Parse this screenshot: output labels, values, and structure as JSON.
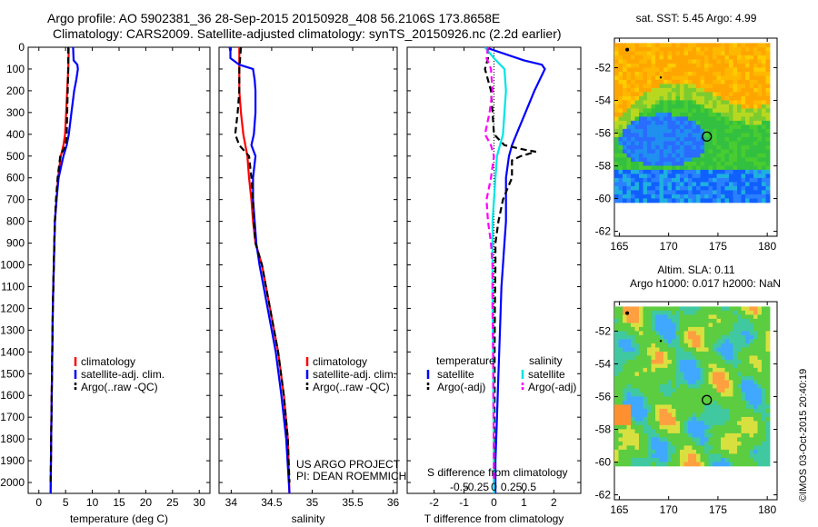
{
  "header": {
    "line1": "Argo profile: AO 5902381_36 28-Sep-2015 20150928_408 56.2106S 173.8658E",
    "line2": "Climatology: CARS2009. Satellite-adjusted climatology: synTS_20150926.nc (2.2d earlier)"
  },
  "colors": {
    "red": "#ff0000",
    "blue": "#0000ff",
    "black": "#000000",
    "cyan": "#00e5e5",
    "magenta": "#ff00ff"
  },
  "chart_data": [
    {
      "type": "line",
      "name": "temperature-profile",
      "xlabel": "temperature (deg C)",
      "xlim": [
        -2,
        32
      ],
      "ylim": [
        0,
        2050
      ],
      "xticks": [
        "0",
        "5",
        "10",
        "15",
        "20",
        "25",
        "30"
      ],
      "xtick_values": [
        0,
        5,
        10,
        15,
        20,
        25,
        30
      ],
      "yticks": [
        "0",
        "100",
        "200",
        "300",
        "400",
        "500",
        "600",
        "700",
        "800",
        "900",
        "1000",
        "1100",
        "1200",
        "1300",
        "1400",
        "1500",
        "1600",
        "1700",
        "1800",
        "1900",
        "2000"
      ],
      "ytick_values": [
        0,
        100,
        200,
        300,
        400,
        500,
        600,
        700,
        800,
        900,
        1000,
        1100,
        1200,
        1300,
        1400,
        1500,
        1600,
        1700,
        1800,
        1900,
        2000
      ],
      "legend": [
        "climatology",
        "satellite-adj. clim.",
        "Argo(..raw -QC)"
      ],
      "series": [
        {
          "name": "climatology",
          "color": "red",
          "dash": false,
          "depth": [
            0,
            100,
            200,
            300,
            400,
            450,
            500,
            600,
            700,
            800,
            900,
            1000,
            1200,
            1400,
            1600,
            1800,
            2050
          ],
          "x": [
            5.6,
            5.5,
            5.3,
            5.1,
            4.9,
            4.6,
            4.1,
            3.6,
            3.3,
            3.0,
            2.9,
            2.8,
            2.6,
            2.5,
            2.4,
            2.3,
            2.2
          ]
        },
        {
          "name": "satellite-adj. clim.",
          "color": "blue",
          "dash": false,
          "depth": [
            0,
            60,
            80,
            100,
            150,
            200,
            300,
            400,
            450,
            500,
            600,
            700,
            800,
            900,
            1000,
            1200,
            1400,
            1600,
            1800,
            2050
          ],
          "x": [
            6.4,
            6.5,
            7.2,
            7.3,
            7.0,
            6.6,
            6.1,
            5.6,
            5.2,
            4.6,
            3.7,
            3.3,
            3.0,
            2.9,
            2.8,
            2.6,
            2.5,
            2.4,
            2.3,
            2.2
          ]
        },
        {
          "name": "Argo(..raw -QC)",
          "color": "black",
          "dash": true,
          "depth": [
            0,
            100,
            200,
            300,
            400,
            450,
            500,
            600,
            700,
            800,
            900,
            1000,
            1200,
            1400,
            1600,
            1800,
            2000
          ],
          "x": [
            5.5,
            5.5,
            5.4,
            5.3,
            5.2,
            5.0,
            4.0,
            3.5,
            3.2,
            3.0,
            2.9,
            2.8,
            2.6,
            2.5,
            2.4,
            2.3,
            2.2
          ]
        }
      ]
    },
    {
      "type": "line",
      "name": "salinity-profile",
      "xlabel": "salinity",
      "xlim": [
        33.85,
        36.05
      ],
      "ylim": [
        0,
        2050
      ],
      "xticks": [
        "34",
        "34.5",
        "35",
        "35.5",
        "36"
      ],
      "xtick_values": [
        34,
        34.5,
        35,
        35.5,
        36
      ],
      "legend": [
        "climatology",
        "satellite-adj. clim.",
        "Argo(..raw -QC)"
      ],
      "annotations": [
        "US ARGO PROJECT",
        "PI: DEAN ROEMMICH"
      ],
      "series": [
        {
          "name": "climatology",
          "color": "red",
          "dash": false,
          "depth": [
            0,
            100,
            200,
            300,
            400,
            500,
            600,
            700,
            800,
            900,
            1000,
            1200,
            1400,
            1600,
            1800,
            2050
          ],
          "x": [
            34.1,
            34.1,
            34.1,
            34.12,
            34.15,
            34.2,
            34.22,
            34.25,
            34.27,
            34.3,
            34.38,
            34.48,
            34.58,
            34.65,
            34.7,
            34.72
          ]
        },
        {
          "name": "satellite-adj. clim.",
          "color": "blue",
          "dash": false,
          "depth": [
            0,
            20,
            50,
            80,
            100,
            150,
            200,
            300,
            400,
            450,
            500,
            600,
            700,
            800,
            900,
            1000,
            1200,
            1400,
            1600,
            1800,
            2050
          ],
          "x": [
            33.98,
            33.99,
            33.99,
            34.1,
            34.27,
            34.29,
            34.3,
            34.3,
            34.28,
            34.25,
            34.3,
            34.27,
            34.27,
            34.29,
            34.31,
            34.35,
            34.45,
            34.55,
            34.62,
            34.68,
            34.72
          ]
        },
        {
          "name": "Argo(..raw -QC)",
          "color": "black",
          "dash": true,
          "depth": [
            0,
            100,
            200,
            300,
            400,
            450,
            500,
            600,
            700,
            800,
            900,
            1000,
            1200,
            1400,
            1600,
            1800,
            2000
          ],
          "x": [
            34.12,
            34.1,
            34.1,
            34.08,
            34.05,
            34.1,
            34.22,
            34.25,
            34.27,
            34.28,
            34.3,
            34.38,
            34.48,
            34.58,
            34.65,
            34.7,
            34.72
          ]
        }
      ]
    },
    {
      "type": "line",
      "name": "difference-profile",
      "xlabel": "T difference from climatology",
      "xlabel_top": "S difference from climatology",
      "xlim": [
        -2.9,
        2.9
      ],
      "ylim": [
        0,
        2050
      ],
      "xticks": [
        "-2",
        "-1",
        "0",
        "1",
        "2"
      ],
      "xtick_values": [
        -2,
        -1,
        0,
        1,
        2
      ],
      "xticks_top": [
        "-0.5",
        "-0.25",
        "0",
        "0.25",
        "0.5"
      ],
      "xtick_values_top": [
        -1.16,
        -0.58,
        0,
        0.58,
        1.16
      ],
      "legend": [
        "temperature",
        "satellite",
        "Argo(-adj)",
        "salinity",
        "satellite",
        "Argo(-adj)"
      ],
      "series": [
        {
          "name": "T satellite",
          "color": "blue",
          "dash": false,
          "depth": [
            0,
            60,
            80,
            100,
            200,
            300,
            400,
            450,
            500,
            600,
            700,
            800,
            900,
            1000,
            1100,
            1300,
            1500,
            1700,
            1900,
            2050
          ],
          "x": [
            -0.3,
            1.0,
            1.6,
            1.7,
            1.35,
            1.05,
            0.75,
            0.6,
            0.5,
            0.4,
            0.4,
            0.4,
            0.35,
            0.3,
            0.25,
            0.2,
            0.15,
            0.1,
            0.05,
            0.05
          ]
        },
        {
          "name": "T Argo(-adj)",
          "color": "black",
          "dash": true,
          "depth": [
            0,
            50,
            100,
            200,
            300,
            400,
            450,
            470,
            480,
            500,
            520,
            600,
            650,
            700,
            800,
            900,
            1000,
            1200,
            1400,
            1600,
            2000
          ],
          "x": [
            -0.2,
            -0.2,
            -0.3,
            -0.1,
            -0.05,
            0.0,
            0.35,
            1.0,
            1.4,
            0.9,
            0.6,
            0.6,
            0.45,
            0.3,
            0.15,
            0.05,
            0.05,
            0.03,
            0.02,
            0.02,
            0.0
          ]
        },
        {
          "name": "S satellite",
          "color": "cyan",
          "dash": false,
          "depth": [
            0,
            50,
            100,
            200,
            300,
            400,
            500,
            600,
            700,
            800,
            900,
            1000,
            1200,
            1400,
            1600,
            1800,
            2050
          ],
          "x": [
            -0.3,
            0.0,
            0.35,
            0.4,
            0.35,
            0.3,
            0.1,
            0.05,
            0.0,
            -0.05,
            -0.05,
            -0.05,
            -0.05,
            -0.03,
            -0.02,
            -0.01,
            0.0
          ]
        },
        {
          "name": "S Argo(-adj)",
          "color": "magenta",
          "dash": true,
          "depth": [
            0,
            50,
            100,
            200,
            300,
            400,
            450,
            500,
            600,
            700,
            800,
            900,
            1000,
            1200,
            1400,
            1600,
            1800,
            2000
          ],
          "x": [
            -0.2,
            -0.25,
            -0.1,
            -0.05,
            -0.15,
            -0.3,
            -0.1,
            0.0,
            -0.1,
            -0.25,
            -0.2,
            -0.1,
            -0.05,
            -0.05,
            -0.03,
            -0.02,
            -0.01,
            0.0
          ]
        }
      ]
    },
    {
      "type": "heatmap",
      "name": "sst-map",
      "title": "sat. SST: 5.45  Argo: 4.99",
      "xlim": [
        164.5,
        181
      ],
      "ylim": [
        -62.3,
        -50.2
      ],
      "xticks": [
        "165",
        "170",
        "175",
        "180"
      ],
      "xtick_values": [
        165,
        170,
        175,
        180
      ],
      "yticks": [
        "-52",
        "-54",
        "-56",
        "-58",
        "-60",
        "-62"
      ],
      "ytick_values": [
        -52,
        -54,
        -56,
        -58,
        -60,
        -62
      ],
      "data_extent": {
        "lon": [
          164.5,
          180
        ],
        "lat": [
          -60,
          -50.5
        ]
      },
      "float_position": {
        "lon": 173.87,
        "lat": -56.21
      }
    },
    {
      "type": "heatmap",
      "name": "sla-map",
      "title": "Altim. SLA: 0.11",
      "subtitle": "Argo h1000: 0.017  h2000: NaN",
      "xlim": [
        164.5,
        181
      ],
      "ylim": [
        -62.3,
        -50.2
      ],
      "xticks": [
        "165",
        "170",
        "175",
        "180"
      ],
      "xtick_values": [
        165,
        170,
        175,
        180
      ],
      "yticks": [
        "-52",
        "-54",
        "-56",
        "-58",
        "-60",
        "-62"
      ],
      "ytick_values": [
        -52,
        -54,
        -56,
        -58,
        -60,
        -62
      ],
      "data_extent": {
        "lon": [
          164.5,
          180
        ],
        "lat": [
          -60,
          -50.5
        ]
      },
      "float_position": {
        "lon": 173.87,
        "lat": -56.21
      }
    }
  ],
  "footer": {
    "stamp": "©IMOS 03-Oct-2015 20:40:19"
  }
}
